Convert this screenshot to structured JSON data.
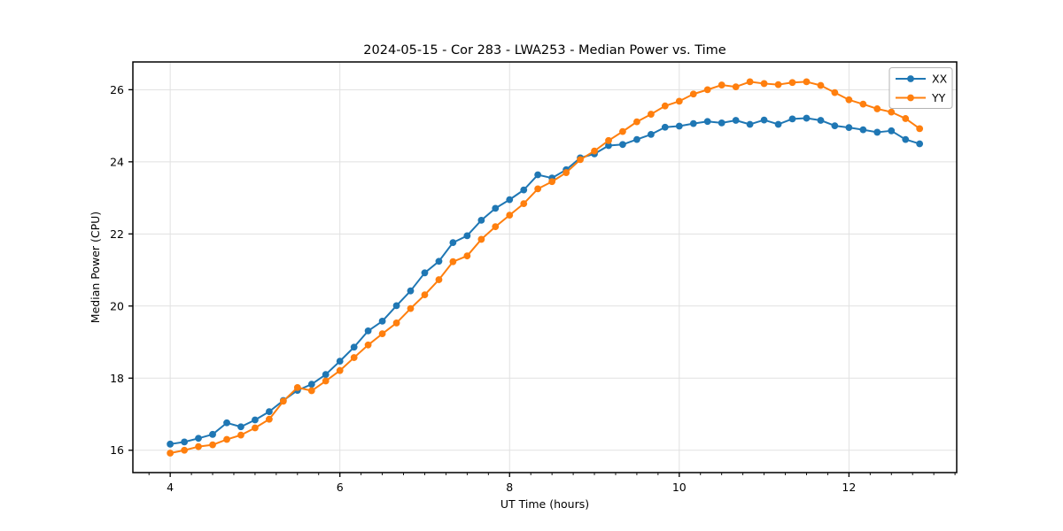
{
  "chart_data": {
    "type": "line",
    "title": "2024-05-15 - Cor 283 - LWA253 - Median Power vs. Time",
    "xlabel": "UT Time (hours)",
    "ylabel": "Median Power (CPU)",
    "xlim": [
      3.56,
      13.27
    ],
    "ylim": [
      15.38,
      26.77
    ],
    "x_ticks": [
      4,
      6,
      8,
      10,
      12
    ],
    "x_minor_step": 0.25,
    "y_ticks": [
      16,
      18,
      20,
      22,
      24,
      26
    ],
    "grid": true,
    "legend_position": "upper right",
    "x": [
      4.0,
      4.167,
      4.333,
      4.5,
      4.667,
      4.833,
      5.0,
      5.167,
      5.333,
      5.5,
      5.667,
      5.833,
      6.0,
      6.167,
      6.333,
      6.5,
      6.667,
      6.833,
      7.0,
      7.167,
      7.333,
      7.5,
      7.667,
      7.833,
      8.0,
      8.167,
      8.333,
      8.5,
      8.667,
      8.833,
      9.0,
      9.167,
      9.333,
      9.5,
      9.667,
      9.833,
      10.0,
      10.167,
      10.333,
      10.5,
      10.667,
      10.833,
      11.0,
      11.167,
      11.333,
      11.5,
      11.667,
      11.833,
      12.0,
      12.167,
      12.333,
      12.5,
      12.667,
      12.833
    ],
    "series": [
      {
        "name": "XX",
        "color": "#1f77b4",
        "values": [
          16.17,
          16.23,
          16.33,
          16.44,
          16.76,
          16.65,
          16.84,
          17.07,
          17.38,
          17.66,
          17.83,
          18.1,
          18.47,
          18.86,
          19.31,
          19.58,
          20.01,
          20.42,
          20.92,
          21.24,
          21.76,
          21.95,
          22.38,
          22.71,
          22.95,
          23.22,
          23.64,
          23.55,
          23.78,
          24.11,
          24.22,
          24.45,
          24.48,
          24.62,
          24.76,
          24.96,
          24.99,
          25.06,
          25.12,
          25.08,
          25.15,
          25.04,
          25.16,
          25.04,
          25.19,
          25.21,
          25.15,
          25.0,
          24.95,
          24.89,
          24.82,
          24.86,
          24.62,
          24.5
        ]
      },
      {
        "name": "YY",
        "color": "#ff7f0e",
        "values": [
          15.92,
          16.0,
          16.1,
          16.15,
          16.3,
          16.42,
          16.62,
          16.86,
          17.36,
          17.74,
          17.65,
          17.92,
          18.21,
          18.57,
          18.92,
          19.23,
          19.53,
          19.93,
          20.31,
          20.73,
          21.23,
          21.39,
          21.85,
          22.2,
          22.52,
          22.84,
          23.25,
          23.45,
          23.7,
          24.06,
          24.3,
          24.59,
          24.84,
          25.11,
          25.32,
          25.55,
          25.68,
          25.88,
          26.0,
          26.13,
          26.08,
          26.22,
          26.17,
          26.14,
          26.2,
          26.22,
          26.12,
          25.92,
          25.72,
          25.6,
          25.47,
          25.38,
          25.2,
          24.92
        ]
      }
    ]
  },
  "legend": {
    "entries": [
      {
        "label": "XX",
        "color": "#1f77b4"
      },
      {
        "label": "YY",
        "color": "#ff7f0e"
      }
    ]
  },
  "colors": {
    "grid": "#e1e1e1",
    "spine": "#000000",
    "legend_border": "#b3b3b3",
    "legend_bg": "#ffffff"
  }
}
